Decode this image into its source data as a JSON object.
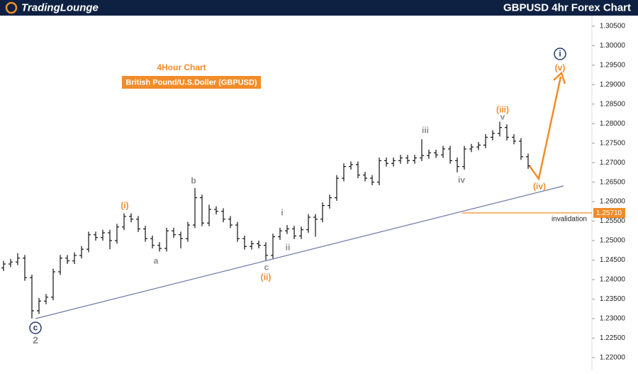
{
  "chart_data": {
    "type": "ohlc",
    "logo": "TradingLounge",
    "title": "GBPUSD 4hr Forex Chart",
    "subtitle": "4Hour Chart",
    "instrument": "British Pound/U.S.Doller (GBPUSD)",
    "color": "#111111",
    "ylim": [
      1.2167,
      1.3077
    ],
    "yticks": [
      {
        "value": 1.22,
        "label": "1.22000"
      },
      {
        "value": 1.225,
        "label": "1.22500"
      },
      {
        "value": 1.23,
        "label": "1.23000"
      },
      {
        "value": 1.235,
        "label": "1.23500"
      },
      {
        "value": 1.24,
        "label": "1.24000"
      },
      {
        "value": 1.245,
        "label": "1.24500"
      },
      {
        "value": 1.25,
        "label": "1.25000"
      },
      {
        "value": 1.255,
        "label": "1.25500"
      },
      {
        "value": 1.26,
        "label": "1.26000"
      },
      {
        "value": 1.265,
        "label": "1.26500"
      },
      {
        "value": 1.27,
        "label": "1.27000"
      },
      {
        "value": 1.275,
        "label": "1.27500"
      },
      {
        "value": 1.28,
        "label": "1.28000"
      },
      {
        "value": 1.285,
        "label": "1.28500"
      },
      {
        "value": 1.29,
        "label": "1.29000"
      },
      {
        "value": 1.295,
        "label": "1.29500"
      },
      {
        "value": 1.3,
        "label": "1.30000"
      },
      {
        "value": 1.305,
        "label": "1.30500"
      }
    ],
    "open": [
      1.243,
      1.244,
      1.2445,
      1.2455,
      1.2405,
      1.232,
      1.2345,
      1.2355,
      1.242,
      1.2455,
      1.2448,
      1.2462,
      1.2478,
      1.2515,
      1.2508,
      1.252,
      1.25,
      1.2535,
      1.2562,
      1.2555,
      1.253,
      1.2505,
      1.2488,
      1.248,
      1.2525,
      1.2515,
      1.2505,
      1.254,
      1.261,
      1.2545,
      1.258,
      1.2575,
      1.2555,
      1.254,
      1.2505,
      1.2485,
      1.2492,
      1.2488,
      1.2462,
      1.251,
      1.2525,
      1.253,
      1.2512,
      1.2528,
      1.256,
      1.2555,
      1.259,
      1.261,
      1.266,
      1.269,
      1.2695,
      1.2668,
      1.266,
      1.265,
      1.2705,
      1.2698,
      1.2705,
      1.2712,
      1.2705,
      1.2712,
      1.2718,
      1.2725,
      1.272,
      1.2735,
      1.2705,
      1.269,
      1.2735,
      1.274,
      1.2745,
      1.2765,
      1.2775,
      1.279,
      1.2765,
      1.2755,
      1.2715
    ],
    "high": [
      1.2448,
      1.2453,
      1.2468,
      1.2463,
      1.2413,
      1.2353,
      1.2363,
      1.2428,
      1.2463,
      1.2463,
      1.247,
      1.2486,
      1.2523,
      1.2523,
      1.2528,
      1.2528,
      1.2543,
      1.257,
      1.257,
      1.2563,
      1.2538,
      1.2513,
      1.2496,
      1.2533,
      1.2533,
      1.2523,
      1.2548,
      1.2635,
      1.2618,
      1.2592,
      1.2588,
      1.2583,
      1.2563,
      1.2548,
      1.2513,
      1.25,
      1.25,
      1.2496,
      1.2518,
      1.2533,
      1.254,
      1.2538,
      1.2536,
      1.2568,
      1.2568,
      1.2598,
      1.2618,
      1.2668,
      1.2698,
      1.2703,
      1.2703,
      1.2676,
      1.2668,
      1.2713,
      1.2713,
      1.2713,
      1.272,
      1.272,
      1.272,
      1.276,
      1.2733,
      1.2733,
      1.2743,
      1.2743,
      1.2713,
      1.2743,
      1.2748,
      1.2753,
      1.2773,
      1.2783,
      1.2805,
      1.2798,
      1.2773,
      1.2763,
      1.2723
    ],
    "low": [
      1.2422,
      1.2432,
      1.2437,
      1.2397,
      1.23,
      1.2312,
      1.2337,
      1.2347,
      1.2412,
      1.244,
      1.244,
      1.2454,
      1.247,
      1.25,
      1.25,
      1.2478,
      1.2492,
      1.2527,
      1.2547,
      1.2522,
      1.2497,
      1.248,
      1.2472,
      1.2472,
      1.2507,
      1.248,
      1.2497,
      1.2532,
      1.2537,
      1.2537,
      1.2567,
      1.2547,
      1.2532,
      1.2497,
      1.2477,
      1.2477,
      1.248,
      1.245,
      1.2454,
      1.2502,
      1.2517,
      1.2504,
      1.2504,
      1.252,
      1.251,
      1.2547,
      1.2582,
      1.2602,
      1.2652,
      1.2682,
      1.266,
      1.2652,
      1.2642,
      1.2642,
      1.269,
      1.269,
      1.2697,
      1.2697,
      1.2697,
      1.2704,
      1.271,
      1.2712,
      1.2712,
      1.2697,
      1.2675,
      1.2682,
      1.2727,
      1.2732,
      1.2737,
      1.2757,
      1.2767,
      1.2757,
      1.2747,
      1.2707,
      1.2684
    ],
    "close": [
      1.244,
      1.2445,
      1.2455,
      1.2405,
      1.232,
      1.2345,
      1.2355,
      1.242,
      1.2455,
      1.2448,
      1.2462,
      1.2478,
      1.2515,
      1.2508,
      1.252,
      1.25,
      1.2535,
      1.2562,
      1.2555,
      1.253,
      1.2505,
      1.2488,
      1.248,
      1.2525,
      1.2515,
      1.2505,
      1.254,
      1.261,
      1.2545,
      1.258,
      1.2575,
      1.2555,
      1.254,
      1.2505,
      1.2485,
      1.2492,
      1.2488,
      1.2462,
      1.251,
      1.2525,
      1.253,
      1.2512,
      1.2528,
      1.256,
      1.2555,
      1.259,
      1.261,
      1.266,
      1.269,
      1.2695,
      1.2668,
      1.266,
      1.265,
      1.2705,
      1.2698,
      1.2705,
      1.2712,
      1.2705,
      1.2712,
      1.2718,
      1.2725,
      1.272,
      1.2735,
      1.2705,
      1.269,
      1.2735,
      1.274,
      1.2745,
      1.2765,
      1.2775,
      1.279,
      1.2765,
      1.2755,
      1.2715,
      1.2692
    ],
    "invalidation": {
      "value": 1.2571,
      "label": "1.25710",
      "text": "invalidation",
      "color": "#f28c28"
    },
    "annotations": [
      {
        "text": "(i)",
        "color": "#f28c28"
      },
      {
        "text": "a",
        "color": "#8a8a8a"
      },
      {
        "text": "b",
        "color": "#8a8a8a"
      },
      {
        "text": "c",
        "color": "#8a8a8a"
      },
      {
        "text": "(ii)",
        "color": "#f28c28"
      },
      {
        "text": "i",
        "color": "#8a8a8a"
      },
      {
        "text": "ii",
        "color": "#8a8a8a"
      },
      {
        "text": "iii",
        "color": "#8a8a8a"
      },
      {
        "text": "iv",
        "color": "#8a8a8a"
      },
      {
        "text": "v",
        "color": "#8a8a8a"
      },
      {
        "text": "(iii)",
        "color": "#f28c28"
      },
      {
        "text": "(iv)",
        "color": "#f28c28"
      },
      {
        "text": "(v)",
        "color": "#f28c28"
      },
      {
        "text": "i",
        "color": "#1f3a68"
      },
      {
        "text": "c",
        "color": "#1f3a68"
      },
      {
        "text": "2",
        "color": "#8a8a8a"
      }
    ]
  }
}
